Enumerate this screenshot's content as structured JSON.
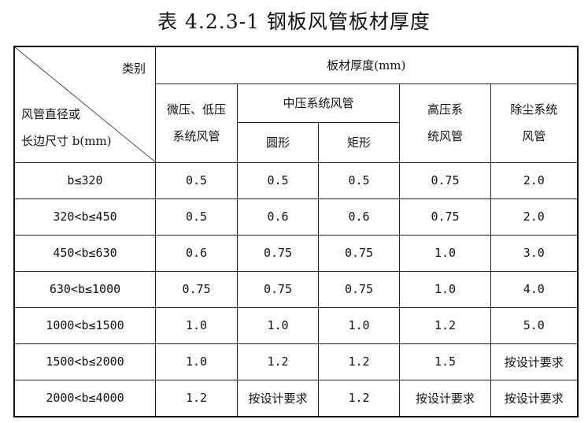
{
  "title": "表 4.2.3-1 钢板风管板材厚度",
  "header": {
    "category": "类别",
    "row_label_1": "风管直径或",
    "row_label_2": "长边尺寸 b(mm)",
    "thickness": "板材厚度(mm)",
    "low": "微压、低压系统风管",
    "medium": "中压系统风管",
    "round": "圆形",
    "rect": "矩形",
    "high": "高压系统风管",
    "dust": "除尘系统风管"
  },
  "rows": [
    [
      "b≤320",
      "0.5",
      "0.5",
      "0.5",
      "0.75",
      "2.0"
    ],
    [
      "320<b≤450",
      "0.5",
      "0.6",
      "0.6",
      "0.75",
      "2.0"
    ],
    [
      "450<b≤630",
      "0.6",
      "0.75",
      "0.75",
      "1.0",
      "3.0"
    ],
    [
      "630<b≤1000",
      "0.75",
      "0.75",
      "0.75",
      "1.0",
      "4.0"
    ],
    [
      "1000<b≤1500",
      "1.0",
      "1.0",
      "1.0",
      "1.2",
      "5.0"
    ],
    [
      "1500<b≤2000",
      "1.0",
      "1.2",
      "1.2",
      "1.5",
      "按设计要求"
    ],
    [
      "2000<b≤4000",
      "1.2",
      "按设计要求",
      "1.2",
      "按设计要求",
      "按设计要求"
    ]
  ]
}
